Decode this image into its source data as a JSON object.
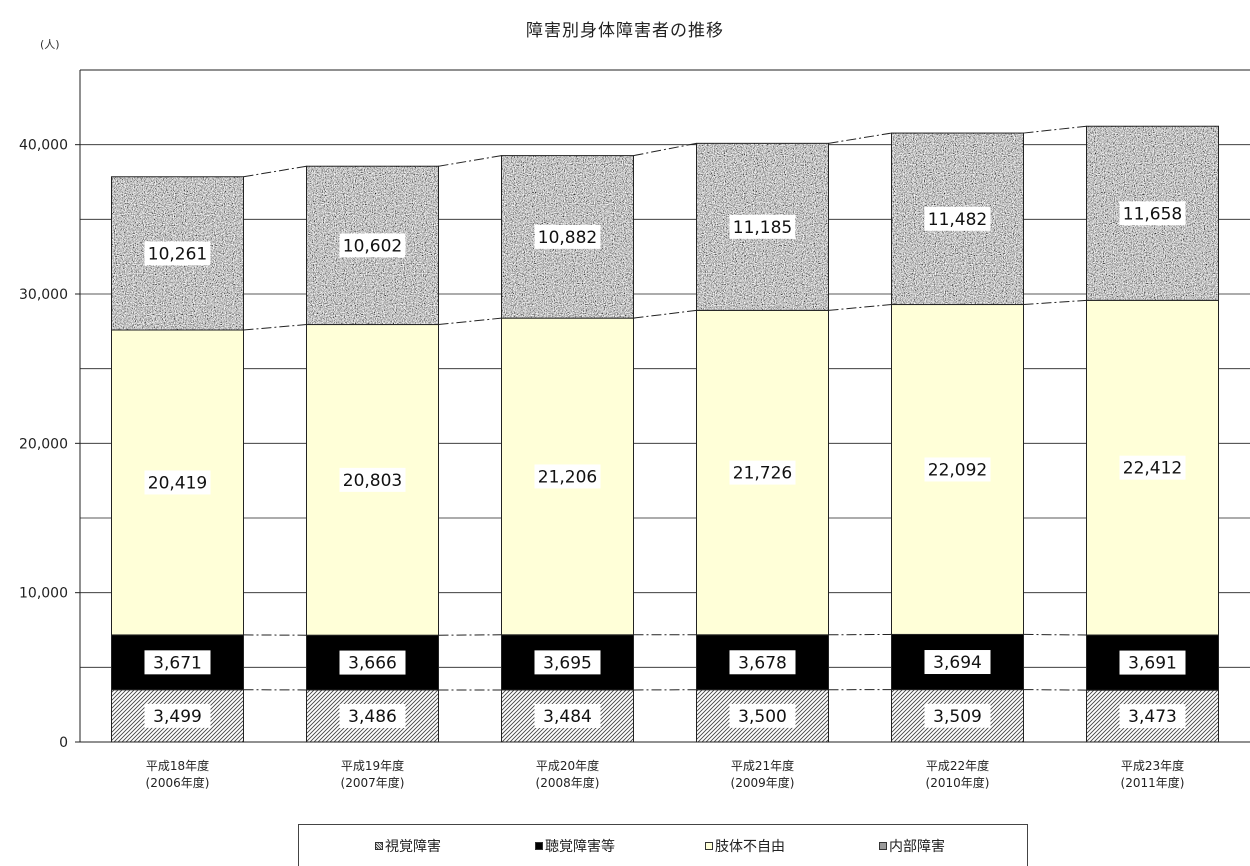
{
  "chart_data": {
    "type": "bar",
    "stacked": true,
    "title": "障害別身体障害者の推移",
    "unit_label": "(人)",
    "categories_line1": [
      "平成18年度",
      "平成19年度",
      "平成20年度",
      "平成21年度",
      "平成22年度",
      "平成23年度"
    ],
    "categories_line2": [
      "(2006年度)",
      "(2007年度)",
      "(2008年度)",
      "(2009年度)",
      "(2010年度)",
      "(2011年度)"
    ],
    "series": [
      {
        "name": "視覚障害",
        "values": [
          3499,
          3486,
          3484,
          3500,
          3509,
          3473
        ],
        "labels": [
          "3,499",
          "3,486",
          "3,484",
          "3,500",
          "3,509",
          "3,473"
        ]
      },
      {
        "name": "聴覚障害等",
        "values": [
          3671,
          3666,
          3695,
          3678,
          3694,
          3691
        ],
        "labels": [
          "3,671",
          "3,666",
          "3,695",
          "3,678",
          "3,694",
          "3,691"
        ]
      },
      {
        "name": "肢体不自由",
        "values": [
          20419,
          20803,
          21206,
          21726,
          22092,
          22412
        ],
        "labels": [
          "20,419",
          "20,803",
          "21,206",
          "21,726",
          "22,092",
          "22,412"
        ]
      },
      {
        "name": "内部障害",
        "values": [
          10261,
          10602,
          10882,
          11185,
          11482,
          11658
        ],
        "labels": [
          "10,261",
          "10,602",
          "10,882",
          "11,185",
          "11,482",
          "11,658"
        ]
      }
    ],
    "y_ticks": [
      0,
      10000,
      20000,
      30000,
      40000
    ],
    "y_tick_labels": [
      "0",
      "10,000",
      "20,000",
      "30,000",
      "40,000"
    ],
    "ylim": [
      0,
      45000
    ],
    "grid": true,
    "legend_position": "bottom",
    "colors": {
      "視覚障害": "#ffffff",
      "聴覚障害等": "#000000",
      "肢体不自由": "#ffffd8",
      "内部障害": "#8f8f8f"
    }
  },
  "legend": {
    "items": [
      "視覚障害",
      "聴覚障害等",
      "肢体不自由",
      "内部障害"
    ]
  }
}
